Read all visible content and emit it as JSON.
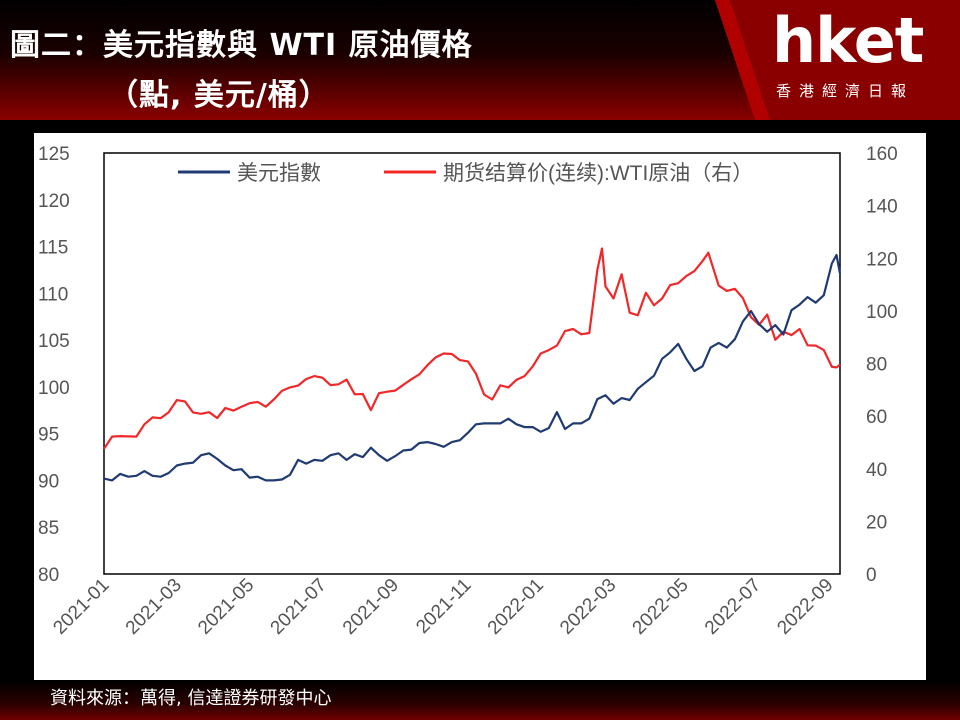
{
  "header": {
    "title_line1": "圖二：美元指數與 WTI 原油價格",
    "title_line2": "（點, 美元/桶）"
  },
  "logo": {
    "brand": "hket",
    "subtitle": "香港經濟日報"
  },
  "footer": {
    "source": "資料來源：萬得, 信達證券研發中心"
  },
  "colors": {
    "dxy": "#1f3b72",
    "wti": "#f0282a",
    "header_red": "#8a0000"
  },
  "chart_data": {
    "type": "line",
    "legend_position": "top",
    "grid": false,
    "x_tick_labels": [
      "2021-01",
      "2021-03",
      "2021-05",
      "2021-07",
      "2021-09",
      "2021-11",
      "2022-01",
      "2022-03",
      "2022-05",
      "2022-07",
      "2022-09"
    ],
    "y_left": {
      "ticks": [
        "80",
        "85",
        "90",
        "95",
        "100",
        "105",
        "110",
        "115",
        "120",
        "125"
      ],
      "range": [
        80,
        125
      ]
    },
    "y_right": {
      "ticks": [
        "0",
        "20",
        "40",
        "60",
        "80",
        "100",
        "120",
        "140",
        "160"
      ],
      "range": [
        0,
        160
      ]
    },
    "x_range": [
      "2021-01-01",
      "2022-09-30"
    ],
    "series": [
      {
        "name": "美元指數",
        "axis": "left",
        "points": [
          [
            "2021-01-01",
            90.2
          ],
          [
            "2021-01-08",
            90.0
          ],
          [
            "2021-01-15",
            90.7
          ],
          [
            "2021-01-22",
            90.4
          ],
          [
            "2021-01-29",
            90.5
          ],
          [
            "2021-02-05",
            91.0
          ],
          [
            "2021-02-12",
            90.5
          ],
          [
            "2021-02-19",
            90.4
          ],
          [
            "2021-02-26",
            90.8
          ],
          [
            "2021-03-05",
            91.6
          ],
          [
            "2021-03-12",
            91.8
          ],
          [
            "2021-03-19",
            91.9
          ],
          [
            "2021-03-26",
            92.7
          ],
          [
            "2021-04-02",
            92.9
          ],
          [
            "2021-04-09",
            92.3
          ],
          [
            "2021-04-16",
            91.6
          ],
          [
            "2021-04-23",
            91.1
          ],
          [
            "2021-04-30",
            91.2
          ],
          [
            "2021-05-07",
            90.3
          ],
          [
            "2021-05-14",
            90.4
          ],
          [
            "2021-05-21",
            90.0
          ],
          [
            "2021-05-28",
            90.0
          ],
          [
            "2021-06-04",
            90.1
          ],
          [
            "2021-06-11",
            90.6
          ],
          [
            "2021-06-18",
            92.2
          ],
          [
            "2021-06-25",
            91.8
          ],
          [
            "2021-07-02",
            92.2
          ],
          [
            "2021-07-09",
            92.1
          ],
          [
            "2021-07-16",
            92.7
          ],
          [
            "2021-07-23",
            92.9
          ],
          [
            "2021-07-30",
            92.2
          ],
          [
            "2021-08-06",
            92.8
          ],
          [
            "2021-08-13",
            92.5
          ],
          [
            "2021-08-20",
            93.5
          ],
          [
            "2021-08-27",
            92.7
          ],
          [
            "2021-09-03",
            92.1
          ],
          [
            "2021-09-10",
            92.6
          ],
          [
            "2021-09-17",
            93.2
          ],
          [
            "2021-09-24",
            93.3
          ],
          [
            "2021-10-01",
            94.0
          ],
          [
            "2021-10-08",
            94.1
          ],
          [
            "2021-10-15",
            93.9
          ],
          [
            "2021-10-22",
            93.6
          ],
          [
            "2021-10-29",
            94.1
          ],
          [
            "2021-11-05",
            94.3
          ],
          [
            "2021-11-12",
            95.1
          ],
          [
            "2021-11-19",
            96.0
          ],
          [
            "2021-11-26",
            96.1
          ],
          [
            "2021-12-03",
            96.1
          ],
          [
            "2021-12-10",
            96.1
          ],
          [
            "2021-12-17",
            96.6
          ],
          [
            "2021-12-24",
            96.0
          ],
          [
            "2021-12-31",
            95.7
          ],
          [
            "2022-01-07",
            95.7
          ],
          [
            "2022-01-14",
            95.2
          ],
          [
            "2022-01-21",
            95.6
          ],
          [
            "2022-01-28",
            97.3
          ],
          [
            "2022-02-04",
            95.5
          ],
          [
            "2022-02-11",
            96.1
          ],
          [
            "2022-02-18",
            96.1
          ],
          [
            "2022-02-25",
            96.6
          ],
          [
            "2022-03-04",
            98.7
          ],
          [
            "2022-03-11",
            99.1
          ],
          [
            "2022-03-18",
            98.2
          ],
          [
            "2022-03-25",
            98.8
          ],
          [
            "2022-04-01",
            98.6
          ],
          [
            "2022-04-08",
            99.8
          ],
          [
            "2022-04-15",
            100.5
          ],
          [
            "2022-04-22",
            101.2
          ],
          [
            "2022-04-29",
            103.0
          ],
          [
            "2022-05-06",
            103.7
          ],
          [
            "2022-05-13",
            104.6
          ],
          [
            "2022-05-20",
            103.0
          ],
          [
            "2022-05-27",
            101.7
          ],
          [
            "2022-06-03",
            102.2
          ],
          [
            "2022-06-10",
            104.2
          ],
          [
            "2022-06-17",
            104.7
          ],
          [
            "2022-06-24",
            104.2
          ],
          [
            "2022-07-01",
            105.1
          ],
          [
            "2022-07-08",
            107.0
          ],
          [
            "2022-07-15",
            108.1
          ],
          [
            "2022-07-22",
            106.7
          ],
          [
            "2022-07-29",
            105.9
          ],
          [
            "2022-08-05",
            106.6
          ],
          [
            "2022-08-12",
            105.6
          ],
          [
            "2022-08-19",
            108.2
          ],
          [
            "2022-08-26",
            108.8
          ],
          [
            "2022-09-02",
            109.6
          ],
          [
            "2022-09-09",
            109.0
          ],
          [
            "2022-09-16",
            109.8
          ],
          [
            "2022-09-23",
            113.2
          ],
          [
            "2022-09-27",
            114.1
          ],
          [
            "2022-09-30",
            112.1
          ]
        ]
      },
      {
        "name": "期货结算价(连续):WTI原油（右）",
        "axis": "right",
        "points": [
          [
            "2021-01-01",
            47.6
          ],
          [
            "2021-01-08",
            52.2
          ],
          [
            "2021-01-15",
            52.4
          ],
          [
            "2021-01-22",
            52.3
          ],
          [
            "2021-01-29",
            52.2
          ],
          [
            "2021-02-05",
            56.9
          ],
          [
            "2021-02-12",
            59.5
          ],
          [
            "2021-02-19",
            59.2
          ],
          [
            "2021-02-26",
            61.5
          ],
          [
            "2021-03-05",
            66.1
          ],
          [
            "2021-03-12",
            65.6
          ],
          [
            "2021-03-19",
            61.4
          ],
          [
            "2021-03-26",
            60.9
          ],
          [
            "2021-04-02",
            61.5
          ],
          [
            "2021-04-09",
            59.3
          ],
          [
            "2021-04-16",
            63.1
          ],
          [
            "2021-04-23",
            62.1
          ],
          [
            "2021-04-30",
            63.6
          ],
          [
            "2021-05-07",
            64.9
          ],
          [
            "2021-05-14",
            65.4
          ],
          [
            "2021-05-21",
            63.6
          ],
          [
            "2021-05-28",
            66.3
          ],
          [
            "2021-06-04",
            69.6
          ],
          [
            "2021-06-11",
            70.9
          ],
          [
            "2021-06-18",
            71.6
          ],
          [
            "2021-06-25",
            74.1
          ],
          [
            "2021-07-02",
            75.2
          ],
          [
            "2021-07-09",
            74.6
          ],
          [
            "2021-07-16",
            71.8
          ],
          [
            "2021-07-23",
            72.1
          ],
          [
            "2021-07-30",
            73.9
          ],
          [
            "2021-08-06",
            68.3
          ],
          [
            "2021-08-13",
            68.4
          ],
          [
            "2021-08-20",
            62.3
          ],
          [
            "2021-08-27",
            68.7
          ],
          [
            "2021-09-03",
            69.3
          ],
          [
            "2021-09-10",
            69.7
          ],
          [
            "2021-09-17",
            71.9
          ],
          [
            "2021-09-24",
            74.0
          ],
          [
            "2021-10-01",
            75.9
          ],
          [
            "2021-10-08",
            79.4
          ],
          [
            "2021-10-15",
            82.3
          ],
          [
            "2021-10-22",
            83.8
          ],
          [
            "2021-10-29",
            83.6
          ],
          [
            "2021-11-05",
            81.3
          ],
          [
            "2021-11-12",
            80.8
          ],
          [
            "2021-11-19",
            76.1
          ],
          [
            "2021-11-26",
            68.2
          ],
          [
            "2021-12-03",
            66.3
          ],
          [
            "2021-12-10",
            71.7
          ],
          [
            "2021-12-17",
            70.9
          ],
          [
            "2021-12-24",
            73.8
          ],
          [
            "2021-12-31",
            75.2
          ],
          [
            "2022-01-07",
            78.9
          ],
          [
            "2022-01-14",
            83.8
          ],
          [
            "2022-01-21",
            85.1
          ],
          [
            "2022-01-28",
            86.8
          ],
          [
            "2022-02-04",
            92.3
          ],
          [
            "2022-02-11",
            93.1
          ],
          [
            "2022-02-18",
            91.1
          ],
          [
            "2022-02-25",
            91.6
          ],
          [
            "2022-03-04",
            115.7
          ],
          [
            "2022-03-08",
            123.7
          ],
          [
            "2022-03-11",
            109.3
          ],
          [
            "2022-03-18",
            104.7
          ],
          [
            "2022-03-25",
            113.9
          ],
          [
            "2022-04-01",
            99.3
          ],
          [
            "2022-04-08",
            98.3
          ],
          [
            "2022-04-15",
            106.9
          ],
          [
            "2022-04-22",
            102.1
          ],
          [
            "2022-04-29",
            104.7
          ],
          [
            "2022-05-06",
            109.8
          ],
          [
            "2022-05-13",
            110.5
          ],
          [
            "2022-05-20",
            113.2
          ],
          [
            "2022-05-27",
            115.1
          ],
          [
            "2022-06-03",
            118.9
          ],
          [
            "2022-06-08",
            122.1
          ],
          [
            "2022-06-17",
            109.6
          ],
          [
            "2022-06-24",
            107.6
          ],
          [
            "2022-07-01",
            108.4
          ],
          [
            "2022-07-08",
            104.8
          ],
          [
            "2022-07-15",
            97.6
          ],
          [
            "2022-07-22",
            94.7
          ],
          [
            "2022-07-29",
            98.6
          ],
          [
            "2022-08-05",
            89.0
          ],
          [
            "2022-08-12",
            92.1
          ],
          [
            "2022-08-19",
            90.8
          ],
          [
            "2022-08-26",
            93.1
          ],
          [
            "2022-09-02",
            86.9
          ],
          [
            "2022-09-09",
            86.8
          ],
          [
            "2022-09-16",
            85.1
          ],
          [
            "2022-09-23",
            78.7
          ],
          [
            "2022-09-27",
            78.5
          ],
          [
            "2022-09-30",
            79.5
          ]
        ]
      }
    ]
  }
}
